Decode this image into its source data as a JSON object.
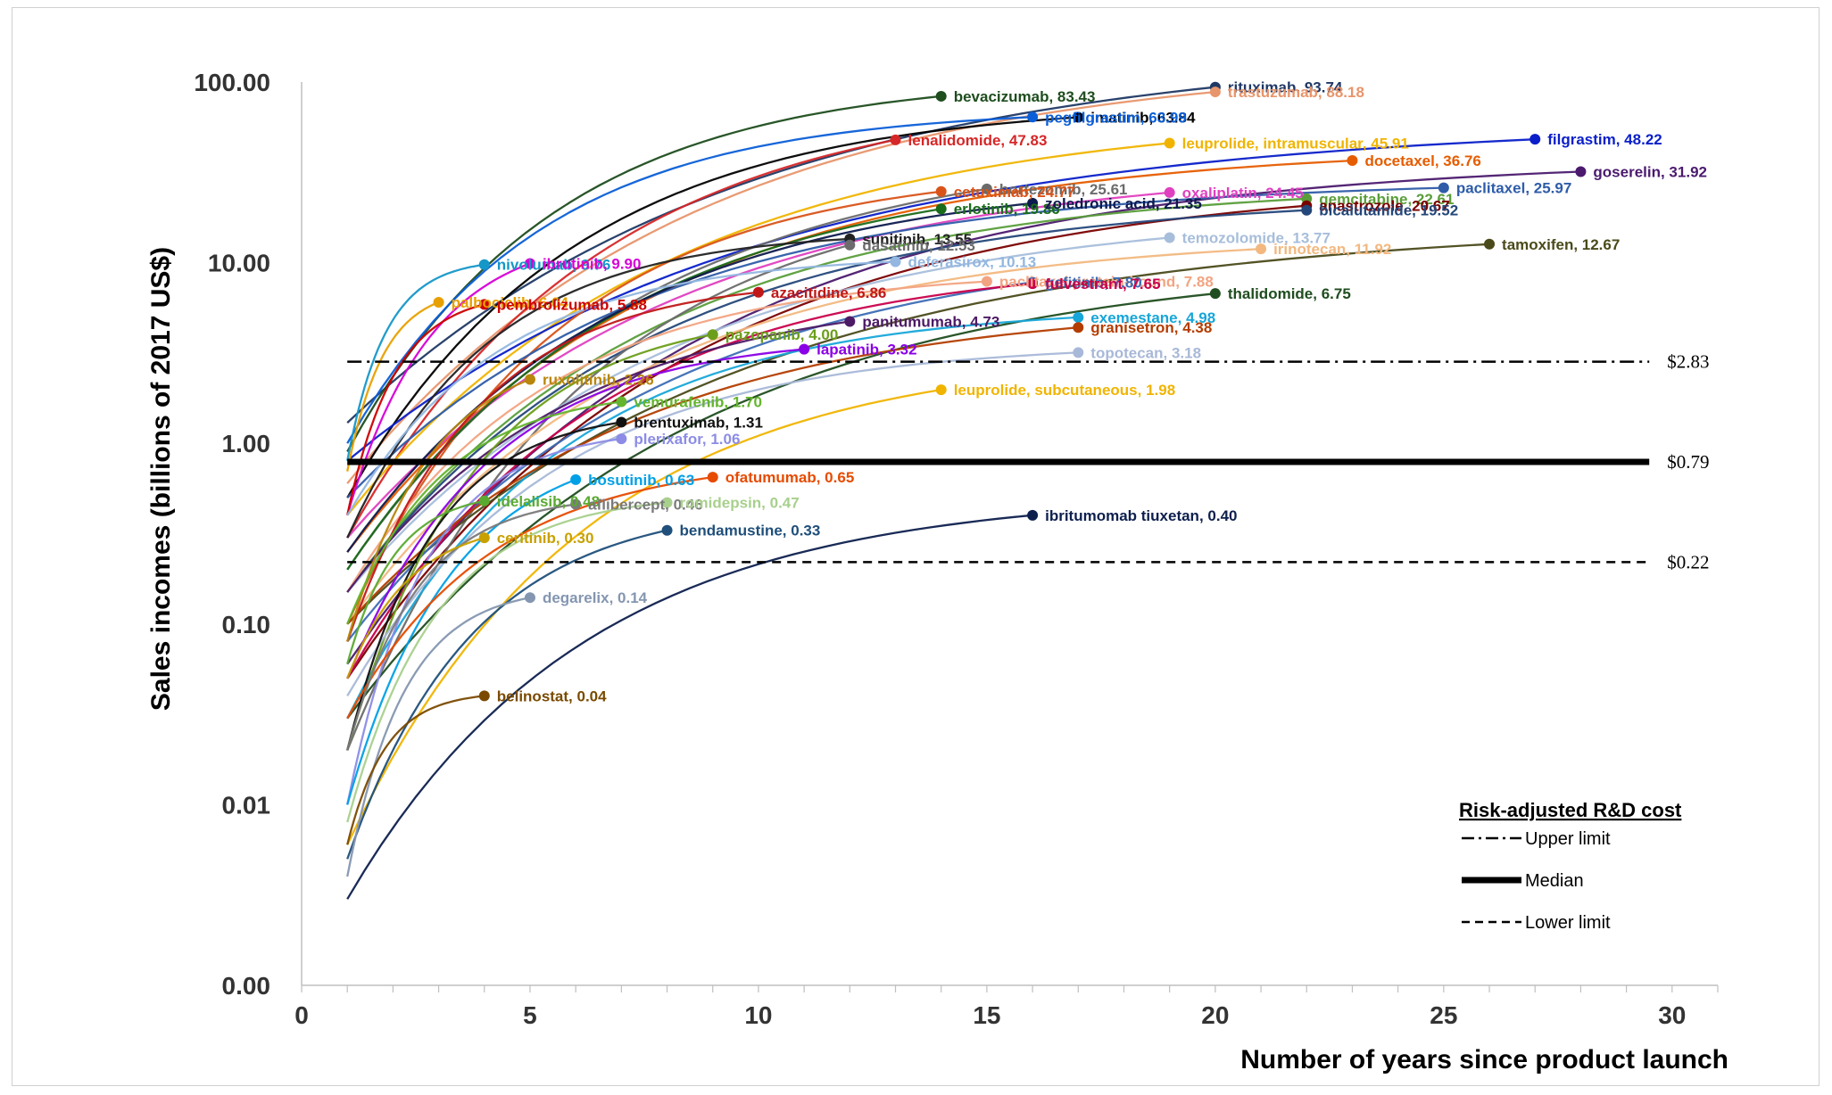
{
  "chart_data": {
    "type": "line",
    "title": "",
    "xlabel": "Number of years since product launch",
    "ylabel": "Sales incomes (billions of 2017 US$)",
    "x_scale": "linear",
    "y_scale": "log",
    "xlim": [
      0,
      31
    ],
    "ylim": [
      0.001,
      100
    ],
    "x_ticks": [
      0,
      5,
      10,
      15,
      20,
      25,
      30
    ],
    "x_tick_labels": [
      "0",
      "5",
      "10",
      "15",
      "20",
      "25",
      "30"
    ],
    "y_ticks": [
      0.001,
      0.01,
      0.1,
      1,
      10,
      100
    ],
    "y_tick_labels": [
      "0.00",
      "0.01",
      "0.10",
      "1.00",
      "10.00",
      "100.00"
    ],
    "grid": false,
    "reference_lines": [
      {
        "value": 2.83,
        "label": "$2.83",
        "style": "dash-dot",
        "legend": "Upper limit"
      },
      {
        "value": 0.79,
        "label": "$0.79",
        "style": "solid-thick",
        "legend": "Median"
      },
      {
        "value": 0.22,
        "label": "$0.22",
        "style": "dashed",
        "legend": "Lower limit"
      }
    ],
    "legend": {
      "title": "Risk-adjusted R&D cost",
      "position": "bottom-right",
      "entries": [
        "Upper limit",
        "Median",
        "Lower limit"
      ]
    },
    "series": [
      {
        "label": "rituximab, 93.74",
        "years": 20,
        "value": 93.74,
        "start": 1.3,
        "color": "#1f3864"
      },
      {
        "label": "trastuzumab, 88.18",
        "years": 20,
        "value": 88.18,
        "start": 0.6,
        "color": "#e8956b"
      },
      {
        "label": "bevacizumab, 83.43",
        "years": 14,
        "value": 83.43,
        "start": 0.9,
        "color": "#1e4d1e"
      },
      {
        "label": "imatinib, 63.84",
        "years": 17,
        "value": 63.84,
        "start": 0.5,
        "color": "#000000"
      },
      {
        "label": "pegfilgrastim, 63.99",
        "years": 16,
        "value": 63.99,
        "start": 1.0,
        "color": "#0b5ed7"
      },
      {
        "label": "lenalidomide, 47.83",
        "years": 13,
        "value": 47.83,
        "start": 0.3,
        "color": "#d62728"
      },
      {
        "label": "leuprolide, intramuscular, 45.91",
        "years": 19,
        "value": 45.91,
        "start": 0.4,
        "color": "#f0b400"
      },
      {
        "label": "filgrastim, 48.22",
        "years": 27,
        "value": 48.22,
        "start": 0.8,
        "color": "#0a1fc9"
      },
      {
        "label": "docetaxel, 36.76",
        "years": 23,
        "value": 36.76,
        "start": 0.25,
        "color": "#e65c00"
      },
      {
        "label": "goserelin, 31.92",
        "years": 28,
        "value": 31.92,
        "start": 0.06,
        "color": "#4b1a6e"
      },
      {
        "label": "bortezomib, 25.61",
        "years": 15,
        "value": 25.61,
        "start": 0.2,
        "color": "#6b6b6b"
      },
      {
        "label": "oxaliplatin, 24.45",
        "years": 19,
        "value": 24.45,
        "start": 0.3,
        "color": "#e040c0"
      },
      {
        "label": "cetuximab, 24.77",
        "years": 14,
        "value": 24.77,
        "start": 0.1,
        "color": "#d95319"
      },
      {
        "label": "gemcitabine, 22.61",
        "years": 22,
        "value": 22.61,
        "start": 0.15,
        "color": "#5a9e3a"
      },
      {
        "label": "paclitaxel, 25.97",
        "years": 25,
        "value": 25.97,
        "start": 0.5,
        "color": "#2e5ca8"
      },
      {
        "label": "erlotinib, 19.86",
        "years": 14,
        "value": 19.86,
        "start": 0.2,
        "color": "#1a6b1a"
      },
      {
        "label": "zoledronic acid, 21.35",
        "years": 16,
        "value": 21.35,
        "start": 0.25,
        "color": "#0d1a4d"
      },
      {
        "label": "anastrozole, 20.67",
        "years": 22,
        "value": 20.67,
        "start": 0.05,
        "color": "#7a0000"
      },
      {
        "label": "bicalutamide, 19.52",
        "years": 22,
        "value": 19.52,
        "start": 0.15,
        "color": "#24477a"
      },
      {
        "label": "sunitinib, 13.55",
        "years": 12,
        "value": 13.55,
        "start": 0.3,
        "color": "#222222"
      },
      {
        "label": "dasatinib, 12.53",
        "years": 12,
        "value": 12.53,
        "start": 0.02,
        "color": "#6c6c6c"
      },
      {
        "label": "temozolomide, 13.77",
        "years": 19,
        "value": 13.77,
        "start": 0.15,
        "color": "#a7bedb"
      },
      {
        "label": "tamoxifen, 12.67",
        "years": 26,
        "value": 12.67,
        "start": 0.1,
        "color": "#4a4a1a"
      },
      {
        "label": "irinotecan, 11.92",
        "years": 21,
        "value": 11.92,
        "start": 0.1,
        "color": "#f2b880"
      },
      {
        "label": "nivolumab, 9.76",
        "years": 4,
        "value": 9.76,
        "start": 0.8,
        "color": "#1597c8"
      },
      {
        "label": "ibrutinib, 9.90",
        "years": 5,
        "value": 9.9,
        "start": 0.4,
        "color": "#d600d6"
      },
      {
        "label": "palbociclib, 6.04",
        "years": 3,
        "value": 6.04,
        "start": 0.7,
        "color": "#e8a000"
      },
      {
        "label": "pembrolizumab, 5.88",
        "years": 4,
        "value": 5.88,
        "start": 0.4,
        "color": "#cc0000"
      },
      {
        "label": "paclitaxel protein-bound, 7.88",
        "years": 15,
        "value": 7.88,
        "start": 0.15,
        "color": "#f2a482"
      },
      {
        "label": "deferasirox, 10.13",
        "years": 13,
        "value": 10.13,
        "start": 0.4,
        "color": "#93b7e0"
      },
      {
        "label": "gefitinib, 7.80",
        "years": 16,
        "value": 7.8,
        "start": 0.08,
        "color": "#3d6db5"
      },
      {
        "label": "thalidomide, 6.75",
        "years": 20,
        "value": 6.75,
        "start": 0.03,
        "color": "#1f4d1f"
      },
      {
        "label": "fulvestrant, 7.65",
        "years": 16,
        "value": 7.65,
        "start": 0.05,
        "color": "#c9004b"
      },
      {
        "label": "azacitidine, 6.86",
        "years": 10,
        "value": 6.86,
        "start": 0.08,
        "color": "#c01818"
      },
      {
        "label": "exemestane, 4.98",
        "years": 17,
        "value": 4.98,
        "start": 0.03,
        "color": "#17a6d9"
      },
      {
        "label": "panitumumab, 4.73",
        "years": 12,
        "value": 4.73,
        "start": 0.15,
        "color": "#4d1a66"
      },
      {
        "label": "granisetron, 4.38",
        "years": 17,
        "value": 4.38,
        "start": 0.1,
        "color": "#b33d00"
      },
      {
        "label": "pazopanib, 4.00",
        "years": 9,
        "value": 4.0,
        "start": 0.02,
        "color": "#6b9e1a"
      },
      {
        "label": "lapatinib, 3.32",
        "years": 11,
        "value": 3.32,
        "start": 0.05,
        "color": "#8a00e6"
      },
      {
        "label": "topotecan, 3.18",
        "years": 17,
        "value": 3.18,
        "start": 0.04,
        "color": "#a8b8d8"
      },
      {
        "label": "ruxolitinib, 2.26",
        "years": 5,
        "value": 2.26,
        "start": 0.08,
        "color": "#b8860b"
      },
      {
        "label": "leuprolide, subcutaneous, 1.98",
        "years": 14,
        "value": 1.98,
        "start": 0.006,
        "color": "#f0b400"
      },
      {
        "label": "vemurafenib, 1.70",
        "years": 7,
        "value": 1.7,
        "start": 0.1,
        "color": "#64b42d"
      },
      {
        "label": "brentuximab, 1.31",
        "years": 7,
        "value": 1.31,
        "start": 0.02,
        "color": "#111111"
      },
      {
        "label": "plerixafor, 1.06",
        "years": 7,
        "value": 1.06,
        "start": 0.01,
        "color": "#8c8ce6"
      },
      {
        "label": "bosutinib, 0.63",
        "years": 6,
        "value": 0.63,
        "start": 0.01,
        "color": "#00a0e6"
      },
      {
        "label": "ofatumumab, 0.65",
        "years": 9,
        "value": 0.65,
        "start": 0.03,
        "color": "#e64b00"
      },
      {
        "label": "idelalisib, 0.48",
        "years": 4,
        "value": 0.48,
        "start": 0.06,
        "color": "#5aaa32"
      },
      {
        "label": "aflibercept, 0.46",
        "years": 6,
        "value": 0.46,
        "start": 0.02,
        "color": "#7a7a7a"
      },
      {
        "label": "romidepsin, 0.47",
        "years": 8,
        "value": 0.47,
        "start": 0.008,
        "color": "#a8d08d"
      },
      {
        "label": "ceritinib, 0.30",
        "years": 4,
        "value": 0.3,
        "start": 0.05,
        "color": "#c8a000"
      },
      {
        "label": "bendamustine, 0.33",
        "years": 8,
        "value": 0.33,
        "start": 0.005,
        "color": "#1f4f7a"
      },
      {
        "label": "ibritumomab tiuxetan, 0.40",
        "years": 16,
        "value": 0.4,
        "start": 0.003,
        "color": "#0d1f4d"
      },
      {
        "label": "degarelix, 0.14",
        "years": 5,
        "value": 0.14,
        "start": 0.004,
        "color": "#8496b0"
      },
      {
        "label": "belinostat, 0.04",
        "years": 4,
        "value": 0.04,
        "start": 0.006,
        "color": "#7a4a00"
      }
    ]
  }
}
